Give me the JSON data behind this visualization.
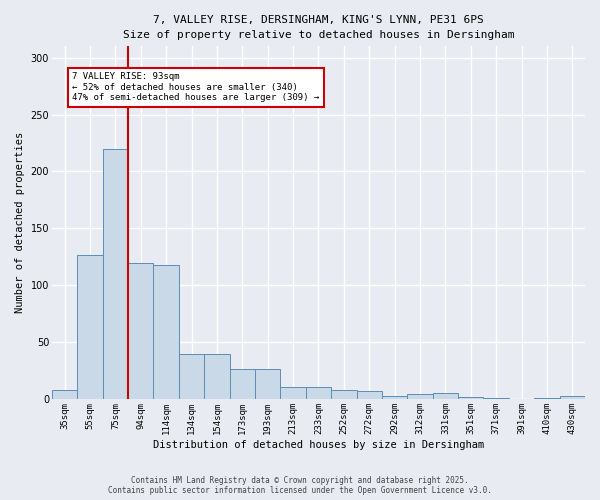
{
  "title_line1": "7, VALLEY RISE, DERSINGHAM, KING'S LYNN, PE31 6PS",
  "title_line2": "Size of property relative to detached houses in Dersingham",
  "xlabel": "Distribution of detached houses by size in Dersingham",
  "ylabel": "Number of detached properties",
  "bar_color": "#c9d9e8",
  "bar_edge_color": "#5b8db8",
  "categories": [
    "35sqm",
    "55sqm",
    "75sqm",
    "94sqm",
    "114sqm",
    "134sqm",
    "154sqm",
    "173sqm",
    "193sqm",
    "213sqm",
    "233sqm",
    "252sqm",
    "272sqm",
    "292sqm",
    "312sqm",
    "331sqm",
    "351sqm",
    "371sqm",
    "391sqm",
    "410sqm",
    "430sqm"
  ],
  "values": [
    8,
    127,
    220,
    120,
    118,
    40,
    40,
    27,
    27,
    11,
    11,
    8,
    7,
    3,
    5,
    6,
    2,
    1,
    0,
    1,
    3
  ],
  "ylim": [
    0,
    310
  ],
  "yticks": [
    0,
    50,
    100,
    150,
    200,
    250,
    300
  ],
  "vline_x_idx": 2,
  "vline_color": "#cc0000",
  "annotation_text": "7 VALLEY RISE: 93sqm\n← 52% of detached houses are smaller (340)\n47% of semi-detached houses are larger (309) →",
  "annotation_box_color": "#ffffff",
  "annotation_box_edge_color": "#cc0000",
  "footer_line1": "Contains HM Land Registry data © Crown copyright and database right 2025.",
  "footer_line2": "Contains public sector information licensed under the Open Government Licence v3.0.",
  "background_color": "#e8ecf2",
  "plot_background_color": "#e8ecf2",
  "grid_color": "#ffffff"
}
